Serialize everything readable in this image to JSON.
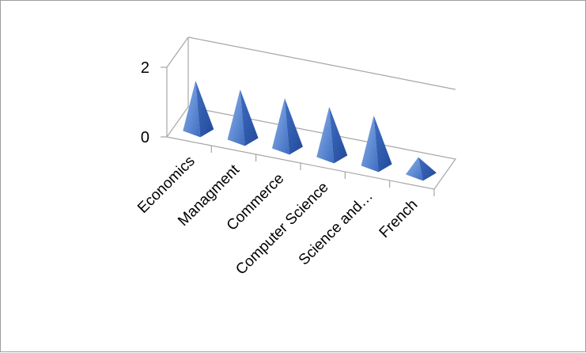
{
  "chart_data": {
    "type": "bar",
    "style": "3d-pyramid",
    "categories": [
      "Economics",
      "Managment",
      "Commerce",
      "Computer Science",
      "Science and…",
      "French"
    ],
    "values": [
      1,
      1,
      1,
      1,
      1,
      0.3
    ],
    "ylim": [
      0,
      2
    ],
    "yticks": [
      "0",
      "2"
    ],
    "title": "",
    "xlabel": "",
    "ylabel": "",
    "grid": false,
    "legend": "none",
    "colors": {
      "pyramid_light": "#6f9be0",
      "pyramid_mid": "#4a78c8",
      "pyramid_dark": "#2d58a6",
      "axis": "#a6a6a6",
      "frame": "#9e9e9e"
    }
  }
}
